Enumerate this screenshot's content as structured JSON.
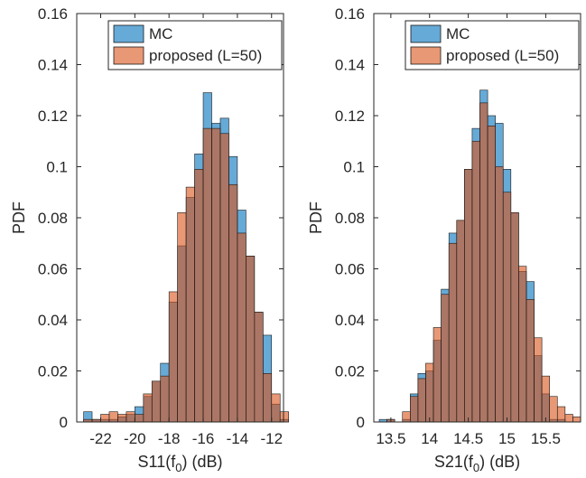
{
  "chart_data": [
    {
      "type": "bar",
      "subtype": "histogram-overlay",
      "xlabel": "S11(f",
      "xlabel_sub": "0",
      "xlabel_tail": ") (dB)",
      "ylabel": "PDF",
      "xlim": [
        -23.4,
        -11.3
      ],
      "ylim": [
        0,
        0.16
      ],
      "xticks": [
        -22,
        -20,
        -18,
        -16,
        -14,
        -12
      ],
      "xtick_labels": [
        "-22",
        "-20",
        "-18",
        "-16",
        "-14",
        "-12"
      ],
      "yticks": [
        0,
        0.02,
        0.04,
        0.06,
        0.08,
        0.1,
        0.12,
        0.14,
        0.16
      ],
      "ytick_labels": [
        "0",
        "0.02",
        "0.04",
        "0.06",
        "0.08",
        "0.1",
        "0.12",
        "0.14",
        "0.16"
      ],
      "legend_position": "top-right",
      "bin_width": 0.5,
      "bin_starts": [
        -23.0,
        -22.5,
        -22.0,
        -21.5,
        -21.0,
        -20.5,
        -20.0,
        -19.5,
        -19.0,
        -18.5,
        -18.0,
        -17.5,
        -17.0,
        -16.5,
        -16.0,
        -15.5,
        -15.0,
        -14.5,
        -14.0,
        -13.5,
        -13.0,
        -12.5,
        -12.0,
        -11.5
      ],
      "series": [
        {
          "name": "MC",
          "color": "#0072BD",
          "values": [
            0.004,
            0.001,
            0.001,
            0.001,
            0.002,
            0.003,
            0.006,
            0.01,
            0.016,
            0.023,
            0.047,
            0.069,
            0.088,
            0.105,
            0.129,
            0.117,
            0.119,
            0.104,
            0.083,
            0.065,
            0.043,
            0.034,
            0.007,
            0.001
          ]
        },
        {
          "name": "proposed (L=50)",
          "color": "#D95319",
          "values": [
            0.001,
            0.001,
            0.003,
            0.004,
            0.003,
            0.004,
            0.003,
            0.011,
            0.016,
            0.018,
            0.051,
            0.082,
            0.092,
            0.099,
            0.115,
            0.115,
            0.113,
            0.093,
            0.074,
            0.065,
            0.043,
            0.019,
            0.011,
            0.004
          ]
        }
      ]
    },
    {
      "type": "bar",
      "subtype": "histogram-overlay",
      "xlabel": "S21(f",
      "xlabel_sub": "0",
      "xlabel_tail": ") (dB)",
      "ylabel": "PDF",
      "xlim": [
        13.28,
        15.95
      ],
      "ylim": [
        0,
        0.16
      ],
      "xticks": [
        13.5,
        14,
        14.5,
        15,
        15.5
      ],
      "xtick_labels": [
        "13.5",
        "14",
        "14.5",
        "15",
        "15.5"
      ],
      "yticks": [
        0,
        0.02,
        0.04,
        0.06,
        0.08,
        0.1,
        0.12,
        0.14,
        0.16
      ],
      "ytick_labels": [
        "0",
        "0.02",
        "0.04",
        "0.06",
        "0.08",
        "0.1",
        "0.12",
        "0.14",
        "0.16"
      ],
      "legend_position": "top-right",
      "bin_width": 0.1,
      "bin_starts": [
        13.35,
        13.45,
        13.55,
        13.65,
        13.75,
        13.85,
        13.95,
        14.05,
        14.15,
        14.25,
        14.35,
        14.45,
        14.55,
        14.65,
        14.75,
        14.85,
        14.95,
        15.05,
        15.15,
        15.25,
        15.35,
        15.45,
        15.55,
        15.65,
        15.75,
        15.85
      ],
      "series": [
        {
          "name": "MC",
          "color": "#0072BD",
          "values": [
            0.001,
            0.001,
            0.0,
            0.001,
            0.011,
            0.019,
            0.02,
            0.032,
            0.052,
            0.074,
            0.079,
            0.099,
            0.115,
            0.13,
            0.12,
            0.117,
            0.099,
            0.082,
            0.059,
            0.055,
            0.026,
            0.011,
            0.001,
            0.001,
            0.0,
            0.0
          ]
        },
        {
          "name": "proposed (L=50)",
          "color": "#D95319",
          "values": [
            0.0,
            0.001,
            0.0,
            0.004,
            0.01,
            0.017,
            0.023,
            0.037,
            0.05,
            0.07,
            0.079,
            0.099,
            0.11,
            0.125,
            0.116,
            0.1,
            0.09,
            0.082,
            0.061,
            0.048,
            0.033,
            0.018,
            0.01,
            0.006,
            0.003,
            0.002
          ]
        }
      ]
    }
  ]
}
